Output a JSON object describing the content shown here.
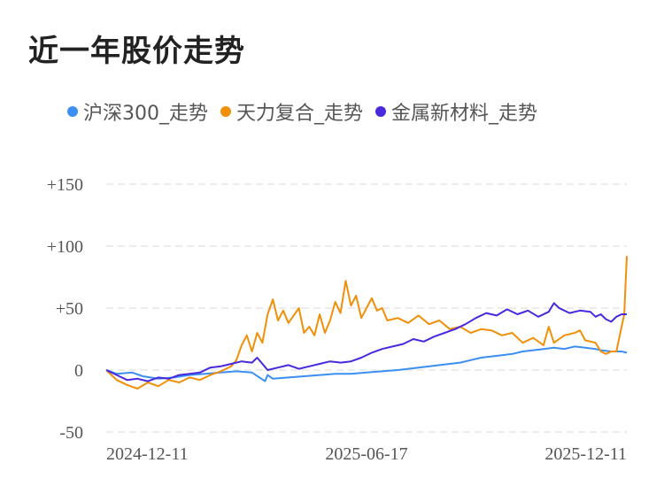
{
  "title": "近一年股价走势",
  "colors": {
    "series1": "#3b8ff0",
    "series2": "#f0900a",
    "series3": "#4a28e0",
    "grid": "#e6e6e6"
  },
  "chart_data": {
    "type": "line",
    "title": "近一年股价走势",
    "xlabel": "",
    "ylabel": "",
    "ylim": [
      -50,
      150
    ],
    "y_ticks": [
      "+150",
      "+100",
      "+50",
      "0",
      "-50"
    ],
    "y_tick_values": [
      150,
      100,
      50,
      0,
      -50
    ],
    "x_ticks": [
      "2024-12-11",
      "2025-06-17",
      "2025-12-11"
    ],
    "x_tick_positions": [
      0.0,
      0.5,
      1.0
    ],
    "x_range": [
      0.0,
      1.0
    ],
    "grid": true,
    "legend_position": "top",
    "series": [
      {
        "name": "沪深300_走势",
        "color": "#3b8ff0",
        "points": [
          [
            0.0,
            0
          ],
          [
            0.02,
            -3
          ],
          [
            0.05,
            -2
          ],
          [
            0.07,
            -5
          ],
          [
            0.1,
            -7
          ],
          [
            0.13,
            -6
          ],
          [
            0.16,
            -4
          ],
          [
            0.19,
            -3
          ],
          [
            0.22,
            -2
          ],
          [
            0.25,
            -1
          ],
          [
            0.28,
            -2
          ],
          [
            0.31,
            -4
          ],
          [
            0.305,
            -9
          ],
          [
            0.32,
            -7
          ],
          [
            0.35,
            -6
          ],
          [
            0.38,
            -5
          ],
          [
            0.41,
            -4
          ],
          [
            0.44,
            -3
          ],
          [
            0.47,
            -3
          ],
          [
            0.5,
            -2
          ],
          [
            0.53,
            -1
          ],
          [
            0.56,
            0
          ],
          [
            0.6,
            2
          ],
          [
            0.64,
            4
          ],
          [
            0.68,
            6
          ],
          [
            0.7,
            8
          ],
          [
            0.72,
            10
          ],
          [
            0.74,
            11
          ],
          [
            0.76,
            12
          ],
          [
            0.78,
            13
          ],
          [
            0.8,
            15
          ],
          [
            0.82,
            16
          ],
          [
            0.84,
            17
          ],
          [
            0.86,
            18
          ],
          [
            0.88,
            17
          ],
          [
            0.9,
            19
          ],
          [
            0.92,
            18
          ],
          [
            0.94,
            17
          ],
          [
            0.95,
            16
          ],
          [
            0.97,
            15
          ],
          [
            0.99,
            15
          ],
          [
            1.0,
            14
          ]
        ]
      },
      {
        "name": "天力复合_走势",
        "color": "#f0900a",
        "points": [
          [
            0.0,
            0
          ],
          [
            0.02,
            -8
          ],
          [
            0.04,
            -12
          ],
          [
            0.06,
            -15
          ],
          [
            0.08,
            -10
          ],
          [
            0.1,
            -13
          ],
          [
            0.12,
            -8
          ],
          [
            0.14,
            -10
          ],
          [
            0.16,
            -6
          ],
          [
            0.18,
            -8
          ],
          [
            0.2,
            -4
          ],
          [
            0.22,
            -1
          ],
          [
            0.24,
            3
          ],
          [
            0.25,
            8
          ],
          [
            0.26,
            20
          ],
          [
            0.27,
            28
          ],
          [
            0.28,
            15
          ],
          [
            0.29,
            30
          ],
          [
            0.3,
            22
          ],
          [
            0.31,
            45
          ],
          [
            0.32,
            57
          ],
          [
            0.33,
            40
          ],
          [
            0.34,
            48
          ],
          [
            0.35,
            38
          ],
          [
            0.36,
            44
          ],
          [
            0.37,
            50
          ],
          [
            0.38,
            30
          ],
          [
            0.39,
            35
          ],
          [
            0.4,
            28
          ],
          [
            0.41,
            45
          ],
          [
            0.42,
            30
          ],
          [
            0.43,
            40
          ],
          [
            0.44,
            55
          ],
          [
            0.45,
            46
          ],
          [
            0.46,
            72
          ],
          [
            0.47,
            52
          ],
          [
            0.48,
            60
          ],
          [
            0.49,
            42
          ],
          [
            0.5,
            50
          ],
          [
            0.51,
            58
          ],
          [
            0.52,
            48
          ],
          [
            0.53,
            50
          ],
          [
            0.54,
            40
          ],
          [
            0.56,
            42
          ],
          [
            0.58,
            38
          ],
          [
            0.6,
            44
          ],
          [
            0.62,
            37
          ],
          [
            0.64,
            40
          ],
          [
            0.66,
            33
          ],
          [
            0.68,
            35
          ],
          [
            0.7,
            30
          ],
          [
            0.72,
            33
          ],
          [
            0.74,
            32
          ],
          [
            0.76,
            28
          ],
          [
            0.78,
            30
          ],
          [
            0.8,
            22
          ],
          [
            0.82,
            26
          ],
          [
            0.84,
            20
          ],
          [
            0.85,
            35
          ],
          [
            0.86,
            22
          ],
          [
            0.88,
            28
          ],
          [
            0.9,
            30
          ],
          [
            0.91,
            32
          ],
          [
            0.92,
            24
          ],
          [
            0.94,
            22
          ],
          [
            0.95,
            15
          ],
          [
            0.96,
            13
          ],
          [
            0.97,
            15
          ],
          [
            0.98,
            15
          ],
          [
            0.99,
            35
          ],
          [
            0.995,
            45
          ],
          [
            1.0,
            92
          ]
        ]
      },
      {
        "name": "金属新材料_走势",
        "color": "#4a28e0",
        "points": [
          [
            0.0,
            0
          ],
          [
            0.02,
            -4
          ],
          [
            0.04,
            -8
          ],
          [
            0.06,
            -7
          ],
          [
            0.08,
            -9
          ],
          [
            0.1,
            -6
          ],
          [
            0.12,
            -7
          ],
          [
            0.14,
            -4
          ],
          [
            0.16,
            -3
          ],
          [
            0.18,
            -2
          ],
          [
            0.2,
            2
          ],
          [
            0.22,
            3
          ],
          [
            0.24,
            5
          ],
          [
            0.26,
            7
          ],
          [
            0.28,
            6
          ],
          [
            0.29,
            10
          ],
          [
            0.3,
            5
          ],
          [
            0.31,
            0
          ],
          [
            0.33,
            2
          ],
          [
            0.35,
            4
          ],
          [
            0.37,
            1
          ],
          [
            0.39,
            3
          ],
          [
            0.41,
            5
          ],
          [
            0.43,
            7
          ],
          [
            0.45,
            6
          ],
          [
            0.47,
            7
          ],
          [
            0.49,
            10
          ],
          [
            0.51,
            14
          ],
          [
            0.53,
            17
          ],
          [
            0.55,
            19
          ],
          [
            0.57,
            21
          ],
          [
            0.59,
            25
          ],
          [
            0.61,
            23
          ],
          [
            0.63,
            27
          ],
          [
            0.65,
            30
          ],
          [
            0.67,
            33
          ],
          [
            0.69,
            37
          ],
          [
            0.71,
            42
          ],
          [
            0.73,
            46
          ],
          [
            0.75,
            44
          ],
          [
            0.77,
            49
          ],
          [
            0.79,
            45
          ],
          [
            0.81,
            48
          ],
          [
            0.83,
            43
          ],
          [
            0.85,
            47
          ],
          [
            0.86,
            54
          ],
          [
            0.87,
            50
          ],
          [
            0.89,
            46
          ],
          [
            0.91,
            48
          ],
          [
            0.93,
            47
          ],
          [
            0.94,
            43
          ],
          [
            0.95,
            45
          ],
          [
            0.96,
            41
          ],
          [
            0.97,
            39
          ],
          [
            0.98,
            43
          ],
          [
            0.99,
            45
          ],
          [
            1.0,
            45
          ]
        ]
      }
    ]
  }
}
